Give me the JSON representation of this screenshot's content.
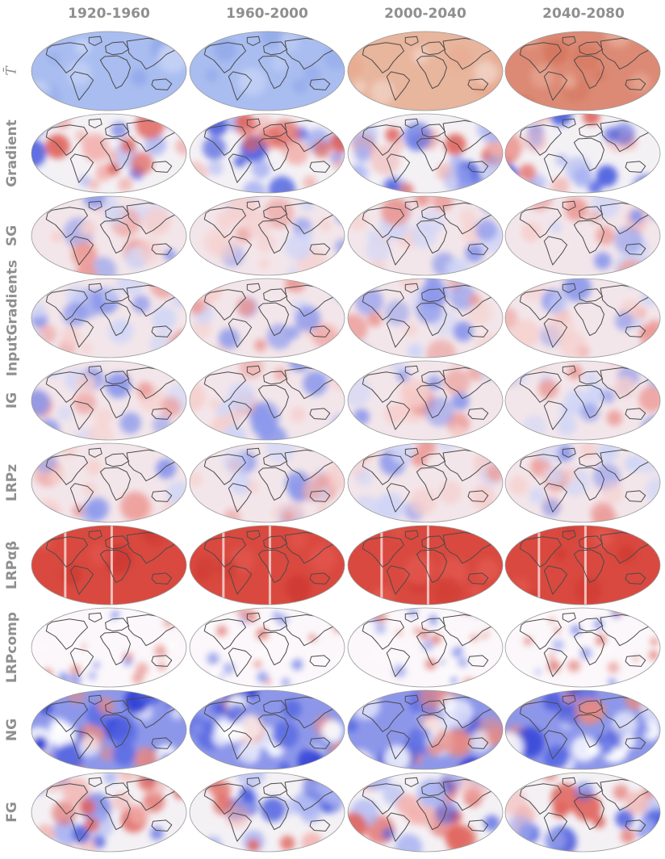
{
  "figure": {
    "columns": [
      "1920-1960",
      "1960-2000",
      "2000-2040",
      "2040-2080"
    ],
    "rows": [
      {
        "label": "T̄",
        "pattern": "mean-temperature"
      },
      {
        "label": "Gradient",
        "pattern": "mixed"
      },
      {
        "label": "SG",
        "pattern": "mixed-light"
      },
      {
        "label": "InputGradients",
        "pattern": "mixed-light"
      },
      {
        "label": "IG",
        "pattern": "mixed-light"
      },
      {
        "label": "LRPz",
        "pattern": "mixed-light"
      },
      {
        "label": "LRPαβ",
        "pattern": "all-red"
      },
      {
        "label": "LRPcomp",
        "pattern": "sparse"
      },
      {
        "label": "NG",
        "pattern": "blue-dominant"
      },
      {
        "label": "FG",
        "pattern": "mixed"
      }
    ],
    "mean_temperature_fills": [
      "#a9bdf0",
      "#a9bdf0",
      "#e8b59d",
      "#dc8a75"
    ],
    "colors": {
      "positive": "#d9372f",
      "negative": "#2e3fd8",
      "neutral": "#f4f1f5",
      "coast": "#4a4a4a",
      "label": "#8f8f8f"
    }
  }
}
